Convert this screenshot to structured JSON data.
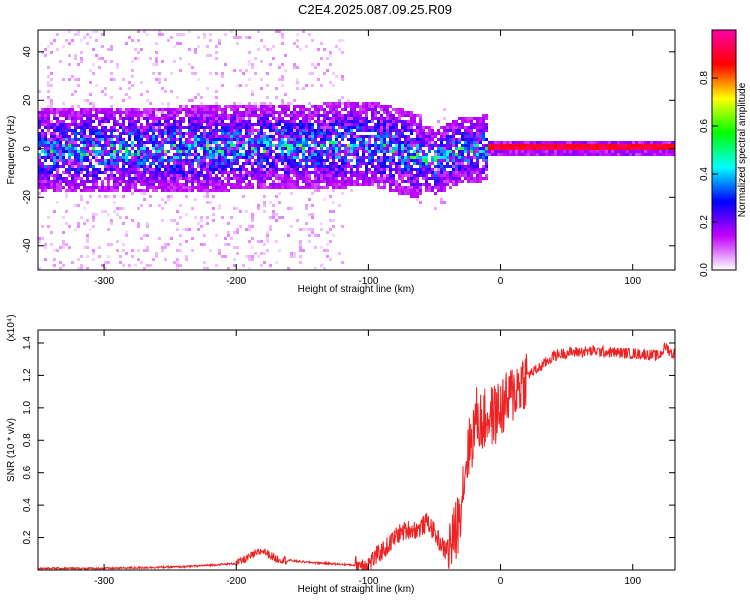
{
  "title": "C2E4.2025.087.09.25.R09",
  "chart_data": [
    {
      "type": "heatmap",
      "xlabel": "Height of straight line (km)",
      "ylabel": "Frequency (Hz)",
      "xlim": [
        -350,
        132
      ],
      "ylim": [
        -50,
        49
      ],
      "xticks": [
        -300,
        -200,
        -100,
        0,
        100
      ],
      "yticks": [
        -40,
        -20,
        0,
        20,
        40
      ],
      "grid": false,
      "colorbar": {
        "label": "Normalized spectral amplitude",
        "range": [
          0,
          1
        ],
        "ticks": [
          "0.0",
          "0.2",
          "0.4",
          "0.6",
          "0.8"
        ],
        "colormap": [
          "#ffffff",
          "#c000ff",
          "#0000ff",
          "#00ffff",
          "#00ff00",
          "#ffff00",
          "#ff0000",
          "#ff00aa"
        ]
      },
      "ridge": [
        {
          "x": -350,
          "y": 0
        },
        {
          "x": -300,
          "y": 0
        },
        {
          "x": -200,
          "y": 1
        },
        {
          "x": -120,
          "y": 2
        },
        {
          "x": -100,
          "y": 3
        },
        {
          "x": -80,
          "y": 0
        },
        {
          "x": -60,
          "y": -3
        },
        {
          "x": -50,
          "y": -5
        },
        {
          "x": -40,
          "y": -2
        },
        {
          "x": -30,
          "y": 0
        },
        {
          "x": -10,
          "y": 1
        },
        {
          "x": 0,
          "y": 1
        },
        {
          "x": 132,
          "y": 1
        }
      ]
    },
    {
      "type": "line",
      "xlabel": "Height of straight line (km)",
      "ylabel": "SNR (10 * v/v)",
      "y_multiplier": "(x10⁴)",
      "xlim": [
        -350,
        132
      ],
      "ylim": [
        0,
        1.48
      ],
      "xticks": [
        -300,
        -200,
        -100,
        0,
        100
      ],
      "yticks": [
        0.2,
        0.4,
        0.6,
        0.8,
        1.0,
        1.2,
        1.4
      ],
      "grid": false,
      "series": [
        {
          "color": "#ee2222",
          "x": [
            -350,
            -300,
            -240,
            -200,
            -190,
            -180,
            -170,
            -150,
            -130,
            -110,
            -100,
            -92,
            -85,
            -78,
            -70,
            -62,
            -55,
            -48,
            -42,
            -36,
            -32,
            -28,
            -25,
            -22,
            -18,
            -14,
            -10,
            -5,
            0,
            5,
            10,
            15,
            20,
            30,
            40,
            50,
            70,
            90,
            110,
            120,
            125,
            130,
            132
          ],
          "y": [
            0.01,
            0.01,
            0.02,
            0.04,
            0.08,
            0.12,
            0.07,
            0.05,
            0.04,
            0.03,
            0.04,
            0.1,
            0.15,
            0.22,
            0.25,
            0.25,
            0.3,
            0.2,
            0.12,
            0.18,
            0.3,
            0.55,
            0.72,
            0.8,
            0.95,
            0.9,
            0.95,
            0.95,
            1.0,
            1.03,
            1.1,
            1.15,
            1.2,
            1.25,
            1.32,
            1.34,
            1.35,
            1.34,
            1.33,
            1.32,
            1.38,
            1.33,
            1.34
          ]
        }
      ]
    }
  ]
}
